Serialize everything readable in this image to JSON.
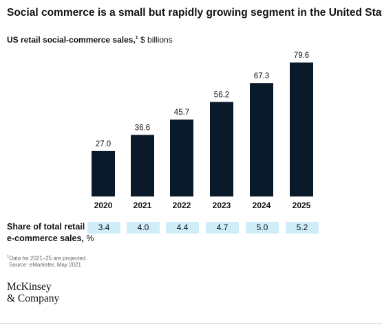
{
  "title": "Social commerce is a small but rapidly growing segment in the United States.",
  "subtitle": {
    "label": "US retail social-commerce sales,",
    "footnote_marker": "1",
    "unit": " $ billions"
  },
  "chart_data": {
    "type": "bar",
    "title": "US retail social-commerce sales, $ billions",
    "categories": [
      "2020",
      "2021",
      "2022",
      "2023",
      "2024",
      "2025"
    ],
    "values": [
      27.0,
      36.6,
      45.7,
      56.2,
      67.3,
      79.6
    ],
    "value_labels": [
      "27.0",
      "36.6",
      "45.7",
      "56.2",
      "67.3",
      "79.6"
    ],
    "ylim": [
      0,
      79.6
    ],
    "grid": false,
    "bar_color": "#0b1a2b"
  },
  "share": {
    "label_line1": "Share of total retail",
    "label_line2": "e-commerce sales,",
    "label_unit": " %",
    "values": [
      "3.4",
      "4.0",
      "4.4",
      "4.7",
      "5.0",
      "5.2"
    ],
    "chip_color": "#cfeefa"
  },
  "footnote": {
    "marker": "1",
    "line1": "Data for 2021–25 are projected.",
    "line2": "Source: eMarketer, May 2021"
  },
  "logo": {
    "line1": "McKinsey",
    "line2": "& Company"
  }
}
